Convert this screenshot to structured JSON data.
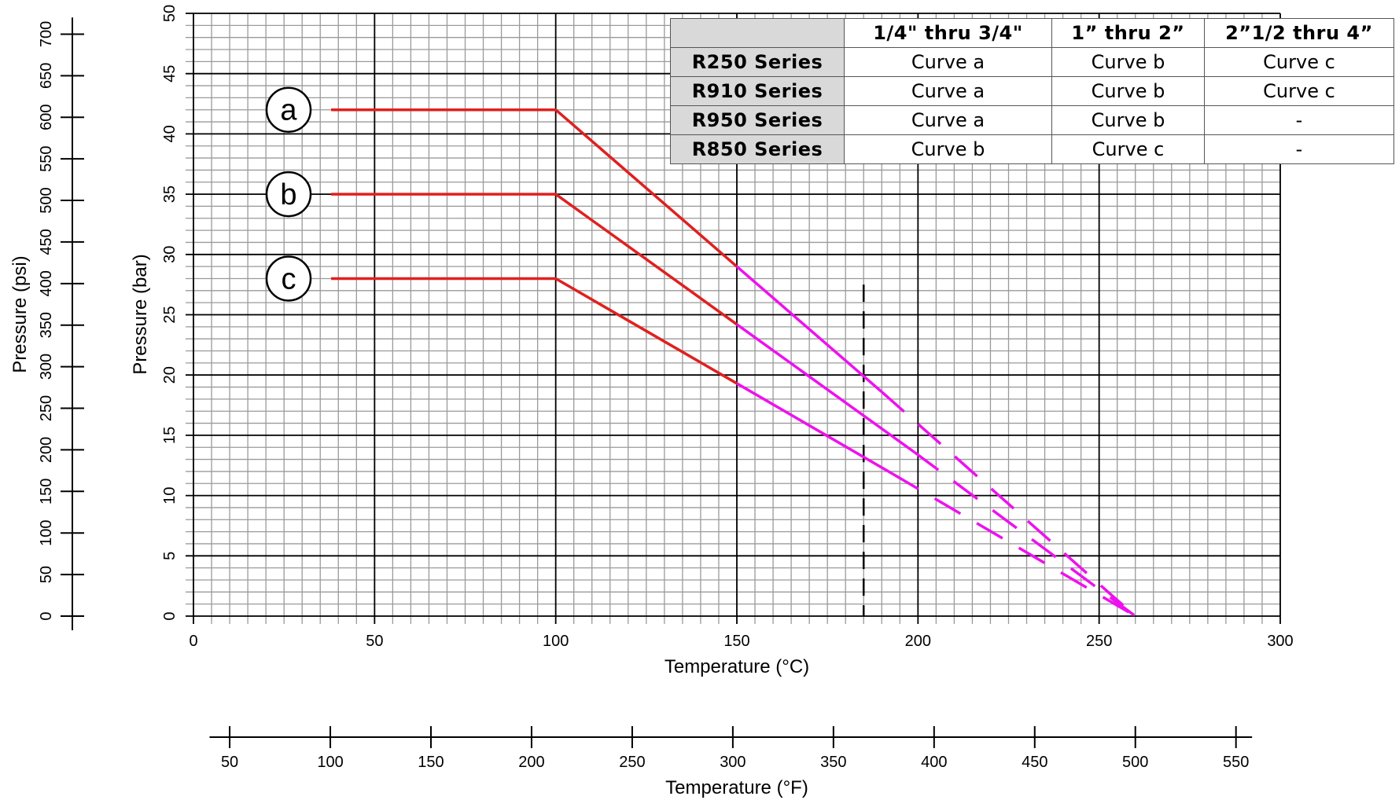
{
  "chart_data": {
    "type": "line",
    "xlabel": "Temperature (°C)",
    "ylabel": "Pressure (bar)",
    "secondary_xlabel": "Temperature (°F)",
    "secondary_ylabel": "Pressure (psi)",
    "xlim": [
      0,
      300
    ],
    "ylim": [
      0,
      50
    ],
    "secondary_xlim": [
      32,
      572
    ],
    "secondary_ylim": [
      0,
      725
    ],
    "x_ticks": [
      "0",
      "50",
      "100",
      "150",
      "200",
      "250",
      "300"
    ],
    "y_ticks": [
      "0",
      "5",
      "10",
      "15",
      "20",
      "25",
      "30",
      "35",
      "40",
      "45",
      "50"
    ],
    "secondary_x_ticks": [
      "50",
      "100",
      "150",
      "200",
      "250",
      "300",
      "350",
      "400",
      "450",
      "500",
      "550"
    ],
    "secondary_y_ticks": [
      "0",
      "50",
      "100",
      "150",
      "200",
      "250",
      "300",
      "350",
      "400",
      "450",
      "500",
      "550",
      "600",
      "650",
      "700"
    ],
    "grid": true,
    "reference_line_x": 185,
    "series": [
      {
        "name": "a",
        "points": [
          [
            38,
            42
          ],
          [
            100,
            42
          ],
          [
            150,
            29
          ],
          [
            190,
            18.6
          ],
          [
            260,
            0
          ]
        ],
        "solid_color": "#e02020",
        "hot_color": "#ee11ee"
      },
      {
        "name": "b",
        "points": [
          [
            38,
            35
          ],
          [
            100,
            35
          ],
          [
            150,
            24.2
          ],
          [
            199,
            13.6
          ],
          [
            260,
            0
          ]
        ],
        "solid_color": "#e02020",
        "hot_color": "#ee11ee"
      },
      {
        "name": "c",
        "points": [
          [
            38,
            28
          ],
          [
            100,
            28
          ],
          [
            150,
            19.3
          ],
          [
            193,
            11.8
          ],
          [
            260,
            0
          ]
        ],
        "solid_color": "#e02020",
        "hot_color": "#ee11ee"
      }
    ]
  },
  "table": {
    "headers": [
      "",
      "1/4\" thru 3/4\"",
      "1” thru 2”",
      "2”1/2 thru 4”"
    ],
    "rows": [
      {
        "series": "R250 Series",
        "cells": [
          "Curve a",
          "Curve b",
          "Curve c"
        ]
      },
      {
        "series": "R910 Series",
        "cells": [
          "Curve a",
          "Curve b",
          "Curve c"
        ]
      },
      {
        "series": "R950 Series",
        "cells": [
          "Curve a",
          "Curve b",
          "-"
        ]
      },
      {
        "series": "R850 Series",
        "cells": [
          "Curve b",
          "Curve c",
          "-"
        ]
      }
    ]
  }
}
